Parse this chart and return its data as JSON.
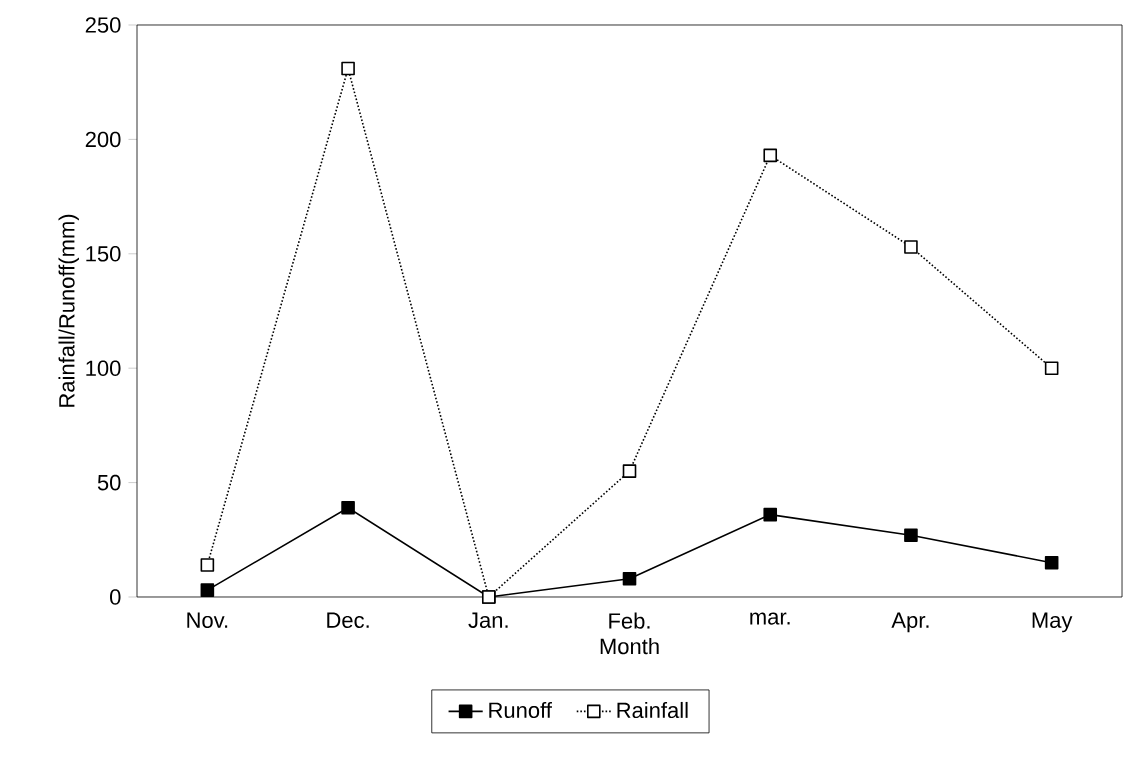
{
  "chart_data": {
    "type": "line",
    "xlabel": "Month",
    "ylabel": "Rainfall/Runoff(mm)",
    "categories": [
      "Nov.",
      "Dec.",
      "Jan.",
      "Feb.",
      "mar.",
      "Apr.",
      "May"
    ],
    "series": [
      {
        "name": "Runoff",
        "color": "#000000",
        "line_style": "solid",
        "values": [
          3,
          39,
          0,
          8,
          36,
          27,
          15
        ]
      },
      {
        "name": "Rainfall",
        "color": "#000000",
        "line_style": "dotted",
        "values": [
          14,
          231,
          0,
          55,
          193,
          153,
          100
        ]
      }
    ],
    "ylim": [
      0,
      250
    ],
    "yticks": [
      0,
      50,
      100,
      150,
      200,
      250
    ],
    "marker": "square",
    "legend": "bottom",
    "grid": false
  }
}
